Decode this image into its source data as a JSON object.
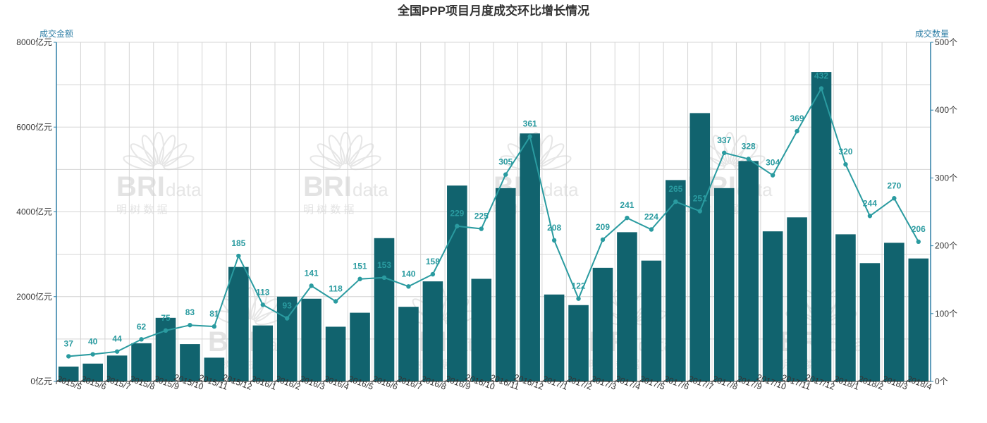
{
  "chart_data": {
    "type": "bar",
    "title": "全国PPP项目月度成交环比增长情况",
    "categories": [
      "2015/5",
      "2015/6",
      "2015/7",
      "2015/8",
      "2015/9",
      "2015/10",
      "2015/11",
      "2015/12",
      "2016/1",
      "2016/2",
      "2016/3",
      "2016/4",
      "2016/5",
      "2016/6",
      "2016/7",
      "2016/8",
      "2016/9",
      "2016/10",
      "2016/11",
      "2016/12",
      "2017/1",
      "2017/2",
      "2017/3",
      "2017/4",
      "2017/5",
      "2017/6",
      "2017/7",
      "2017/8",
      "2017/9",
      "2017/10",
      "2017/11",
      "2017/12",
      "2018/1",
      "2018/2",
      "2018/3",
      "2018/4"
    ],
    "left_axis": {
      "label": "成交金额",
      "min": 0,
      "max": 8000,
      "ticks": [
        0,
        2000,
        4000,
        6000,
        8000
      ],
      "tick_labels": [
        "0亿元",
        "2000亿元",
        "4000亿元",
        "6000亿元",
        "8000亿元"
      ]
    },
    "right_axis": {
      "label": "成交数量",
      "min": 0,
      "max": 500,
      "ticks": [
        0,
        100,
        200,
        300,
        400,
        500
      ],
      "tick_labels": [
        "0个",
        "100个",
        "200个",
        "300个",
        "400个",
        "500个"
      ]
    },
    "grid": true,
    "series": [
      {
        "type": "bar",
        "axis": "left",
        "color": "#11636e",
        "values": [
          350,
          420,
          610,
          900,
          1500,
          880,
          560,
          2700,
          1320,
          2000,
          1950,
          1290,
          1620,
          3380,
          1760,
          2360,
          4620,
          2420,
          4560,
          5850,
          2050,
          1800,
          2680,
          3520,
          2850,
          4750,
          6330,
          4560,
          5200,
          3540,
          3870,
          7300,
          3470,
          2790,
          3270,
          2900
        ]
      },
      {
        "type": "line",
        "axis": "right",
        "color": "#2a9ba0",
        "values": [
          37,
          40,
          44,
          62,
          75,
          83,
          81,
          185,
          113,
          93,
          141,
          118,
          151,
          153,
          140,
          158,
          229,
          225,
          305,
          361,
          208,
          122,
          209,
          241,
          224,
          265,
          251,
          337,
          328,
          304,
          369,
          432,
          320,
          244,
          270,
          206
        ],
        "data_labels": [
          "37",
          "40",
          "44",
          "62",
          "75",
          "83",
          "81",
          "185",
          "113",
          "93",
          "141",
          "118",
          "151",
          "153",
          "140",
          "158",
          "229",
          "225",
          "305",
          "361",
          "208",
          "122",
          "209",
          "241",
          "224",
          "265",
          "251",
          "337",
          "328",
          "304",
          "369",
          "432",
          "320",
          "244",
          "270",
          "206"
        ]
      }
    ],
    "watermark": {
      "text_main": "BRI",
      "text_sub": "data",
      "text_cn": "明 树 数 据"
    }
  }
}
